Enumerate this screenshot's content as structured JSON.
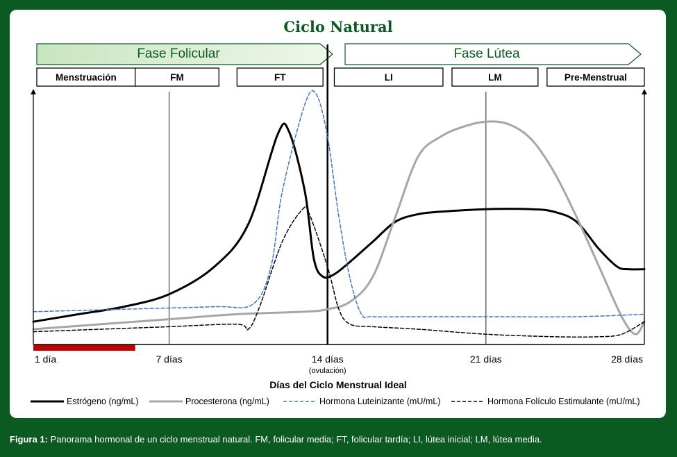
{
  "chart_data": {
    "type": "line",
    "title": "Ciclo Natural",
    "xlabel": "Días del Ciclo Menstrual Ideal",
    "ylabel": "",
    "xlim": [
      1,
      28
    ],
    "ylim": [
      0,
      100
    ],
    "x_ticks": [
      {
        "value": 1,
        "label": "1 día",
        "sublabel": ""
      },
      {
        "value": 7,
        "label": "7 días",
        "sublabel": ""
      },
      {
        "value": 14,
        "label": "14 días",
        "sublabel": "(ovulación)"
      },
      {
        "value": 21,
        "label": "21 días",
        "sublabel": ""
      },
      {
        "value": 28,
        "label": "28 días",
        "sublabel": ""
      }
    ],
    "phases": [
      {
        "label": "Fase Folicular",
        "start": 1,
        "end": 14
      },
      {
        "label": "Fase Lútea",
        "start": 14,
        "end": 28
      }
    ],
    "subphases": [
      {
        "label": "Menstruación",
        "start": 1,
        "end": 5.5
      },
      {
        "label": "FM",
        "start": 5.5,
        "end": 9.2
      },
      {
        "label": "FT",
        "start": 10,
        "end": 13.8
      },
      {
        "label": "LI",
        "start": 14.3,
        "end": 19.1
      },
      {
        "label": "LM",
        "start": 19.5,
        "end": 23.3
      },
      {
        "label": "Pre-Menstrual",
        "start": 23.7,
        "end": 28
      }
    ],
    "menstruation_bar": {
      "start": 1,
      "end": 5.5
    },
    "divider_x": [
      7,
      14,
      21
    ],
    "series": [
      {
        "name": "Estrógeno (ng/mL)",
        "color": "#000000",
        "style": "solid",
        "weight": "thick",
        "x": [
          1,
          3,
          5,
          7,
          9,
          10.5,
          11.8,
          12.3,
          13,
          13.4,
          13.8,
          14.3,
          15,
          16,
          17,
          18,
          19,
          21,
          23,
          24,
          25,
          26,
          26.8,
          27.3,
          28
        ],
        "values": [
          8,
          11,
          14,
          19,
          30,
          47,
          83,
          84,
          60,
          33,
          26,
          27,
          32,
          40,
          48,
          51,
          52,
          53,
          53,
          52,
          48,
          37,
          30,
          29,
          29
        ]
      },
      {
        "name": "Procesterona (ng/mL)",
        "color": "#a6a6a6",
        "style": "solid",
        "weight": "thick",
        "x": [
          1,
          4,
          7,
          10,
          13,
          14,
          15,
          16,
          17,
          18,
          19,
          20,
          21,
          22,
          23,
          24,
          25,
          26,
          27,
          27.6,
          28
        ],
        "values": [
          5,
          7,
          9,
          11,
          12,
          13,
          16,
          26,
          50,
          74,
          82,
          86,
          88,
          87,
          81,
          68,
          50,
          30,
          10,
          3,
          8
        ]
      },
      {
        "name": "Hormona Luteinizante (mU/mL)",
        "color": "#4472c4",
        "style": "dashed",
        "weight": "thin",
        "x": [
          1,
          5,
          9,
          10.7,
          11.5,
          12,
          13,
          13.5,
          14,
          14.5,
          15,
          15.5,
          16,
          18,
          21,
          25,
          28
        ],
        "values": [
          12,
          13,
          14,
          15,
          30,
          60,
          95,
          99,
          82,
          50,
          25,
          11,
          10,
          10,
          10,
          10,
          11
        ]
      },
      {
        "name": "Hormona Folículo Estimulante (mU/mL)",
        "color": "#000000",
        "style": "dashed",
        "weight": "thin",
        "x": [
          1,
          4,
          7,
          10,
          10.5,
          11,
          12,
          12.9,
          13.2,
          14,
          14.5,
          15,
          16,
          18,
          21,
          24,
          26,
          27,
          28
        ],
        "values": [
          4,
          5,
          6,
          7,
          5,
          14,
          40,
          53,
          51,
          30,
          13,
          7,
          6,
          5,
          3,
          2,
          2,
          3,
          8
        ]
      }
    ]
  },
  "caption": {
    "label": "Figura 1:",
    "text": " Panorama hormonal de un ciclo menstrual natural. FM, folicular media; FT, folicular tardía; LI, lútea inicial; LM, lútea media."
  }
}
